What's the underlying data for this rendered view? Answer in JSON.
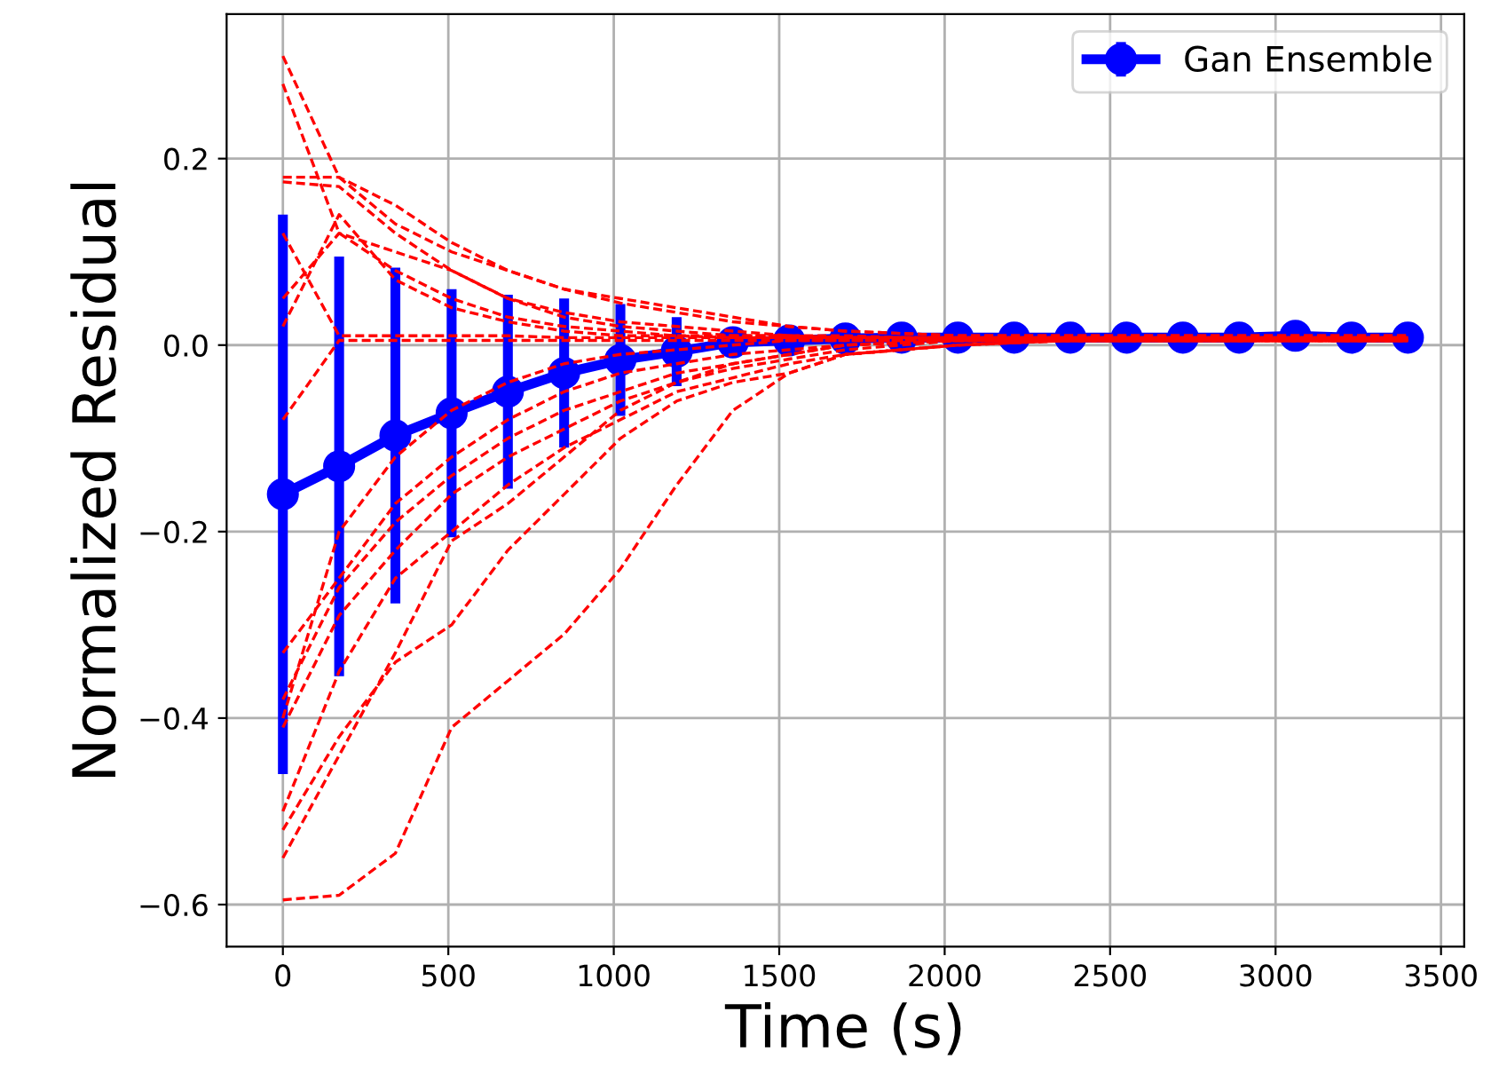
{
  "chart_data": {
    "type": "line",
    "xlabel": "Time (s)",
    "ylabel": "Normalized Residual",
    "xlim": [
      -170,
      3570
    ],
    "xticks": [
      0,
      500,
      1000,
      1500,
      2000,
      2500,
      3000,
      3500
    ],
    "ylim": [
      -0.645,
      0.355
    ],
    "yticks": [
      {
        "value": -0.6,
        "label": "−0.6"
      },
      {
        "value": -0.4,
        "label": "−0.4"
      },
      {
        "value": -0.2,
        "label": "−0.2"
      },
      {
        "value": 0.0,
        "label": "0.0"
      },
      {
        "value": 0.2,
        "label": "0.2"
      }
    ],
    "grid": true,
    "legend": "top right",
    "series": [
      {
        "color": "#ff0000",
        "line_style": "dashed",
        "marker": "none",
        "x": [
          0,
          170,
          340,
          510,
          680,
          850,
          1020,
          1190,
          1360,
          1530,
          1700,
          2040,
          2380,
          2720,
          3060,
          3400
        ],
        "values": [
          0.31,
          0.18,
          0.13,
          0.1,
          0.08,
          0.06,
          0.045,
          0.035,
          0.025,
          0.02,
          0.015,
          0.01,
          0.01,
          0.01,
          0.01,
          0.01
        ]
      },
      {
        "color": "#ff0000",
        "line_style": "dashed",
        "marker": "none",
        "x": [
          0,
          170,
          340,
          510,
          680,
          850,
          1020,
          1190,
          1360,
          1530,
          1700,
          2040,
          2380,
          2720,
          3060,
          3400
        ],
        "values": [
          0.18,
          0.18,
          0.15,
          0.11,
          0.08,
          0.06,
          0.05,
          0.04,
          0.03,
          0.02,
          0.015,
          0.01,
          0.01,
          0.01,
          0.01,
          0.01
        ]
      },
      {
        "color": "#ff0000",
        "line_style": "dashed",
        "marker": "none",
        "x": [
          0,
          170,
          340,
          510,
          680,
          850,
          1020,
          1190,
          1360,
          1530,
          1700,
          2040,
          2380,
          2720,
          3060,
          3400
        ],
        "values": [
          0.175,
          0.17,
          0.12,
          0.08,
          0.05,
          0.035,
          0.025,
          0.02,
          0.015,
          0.01,
          0.01,
          0.006,
          0.006,
          0.006,
          0.006,
          0.006
        ]
      },
      {
        "color": "#ff0000",
        "line_style": "dashed",
        "marker": "none",
        "x": [
          0,
          170,
          340,
          510,
          680,
          850,
          1020,
          1190,
          1360,
          1530,
          1700,
          2040,
          2380,
          2720,
          3060,
          3400
        ],
        "values": [
          0.28,
          0.12,
          0.08,
          0.05,
          0.03,
          0.02,
          0.015,
          0.01,
          0.01,
          0.01,
          0.008,
          0.008,
          0.008,
          0.008,
          0.008,
          0.008
        ]
      },
      {
        "color": "#ff0000",
        "line_style": "dashed",
        "marker": "none",
        "x": [
          0,
          170,
          340,
          510,
          680,
          850,
          1020,
          1190,
          1360,
          1530,
          1700,
          2040,
          2380,
          2720,
          3060,
          3400
        ],
        "values": [
          0.05,
          0.12,
          0.1,
          0.08,
          0.05,
          0.03,
          0.02,
          0.015,
          0.01,
          0.01,
          0.008,
          0.008,
          0.008,
          0.008,
          0.008,
          0.008
        ]
      },
      {
        "color": "#ff0000",
        "line_style": "dashed",
        "marker": "none",
        "x": [
          0,
          170,
          340,
          510,
          680,
          850,
          1020,
          1190,
          1360,
          1530,
          1700,
          2040,
          2380,
          2720,
          3060,
          3400
        ],
        "values": [
          0.02,
          0.14,
          0.07,
          0.04,
          0.025,
          0.015,
          0.01,
          0.01,
          0.008,
          0.008,
          0.008,
          0.008,
          0.008,
          0.008,
          0.008,
          0.008
        ]
      },
      {
        "color": "#ff0000",
        "line_style": "dashed",
        "marker": "none",
        "x": [
          0,
          170,
          340,
          510,
          680,
          850,
          1020,
          1190,
          1360,
          1530,
          1700,
          2040,
          2380,
          2720,
          3060,
          3400
        ],
        "values": [
          0.12,
          0.01,
          0.01,
          0.01,
          0.01,
          0.008,
          0.008,
          0.008,
          0.008,
          0.008,
          0.008,
          0.008,
          0.008,
          0.008,
          0.008,
          0.008
        ]
      },
      {
        "color": "#ff0000",
        "line_style": "dashed",
        "marker": "none",
        "x": [
          0,
          170,
          340,
          510,
          680,
          850,
          1020,
          1190,
          1360,
          1530,
          1700,
          2040,
          2380,
          2720,
          3060,
          3400
        ],
        "values": [
          -0.08,
          0.005,
          0.005,
          0.005,
          0.005,
          0.005,
          0.005,
          0.005,
          0.005,
          0.005,
          0.005,
          0.005,
          0.005,
          0.005,
          0.005,
          0.005
        ]
      },
      {
        "color": "#ff0000",
        "line_style": "dashed",
        "marker": "none",
        "x": [
          0,
          170,
          340,
          510,
          680,
          850,
          1020,
          1190,
          1360,
          1530,
          1700,
          2040,
          2380,
          2720,
          3060,
          3400
        ],
        "values": [
          -0.33,
          -0.25,
          -0.17,
          -0.12,
          -0.08,
          -0.05,
          -0.03,
          -0.02,
          -0.01,
          -0.005,
          0.0,
          0.005,
          0.005,
          0.005,
          0.005,
          0.005
        ]
      },
      {
        "color": "#ff0000",
        "line_style": "dashed",
        "marker": "none",
        "x": [
          0,
          170,
          340,
          510,
          680,
          850,
          1020,
          1190,
          1360,
          1530,
          1700,
          2040,
          2380,
          2720,
          3060,
          3400
        ],
        "values": [
          -0.38,
          -0.26,
          -0.19,
          -0.14,
          -0.1,
          -0.07,
          -0.05,
          -0.03,
          -0.02,
          -0.01,
          0.0,
          0.005,
          0.005,
          0.005,
          0.005,
          0.005
        ]
      },
      {
        "color": "#ff0000",
        "line_style": "dashed",
        "marker": "none",
        "x": [
          0,
          170,
          340,
          510,
          680,
          850,
          1020,
          1190,
          1360,
          1530,
          1700,
          2040,
          2380,
          2720,
          3060,
          3400
        ],
        "values": [
          -0.41,
          -0.29,
          -0.22,
          -0.16,
          -0.12,
          -0.09,
          -0.06,
          -0.04,
          -0.025,
          -0.015,
          -0.005,
          0.005,
          0.005,
          0.005,
          0.005,
          0.005
        ]
      },
      {
        "color": "#ff0000",
        "line_style": "dashed",
        "marker": "none",
        "x": [
          0,
          170,
          340,
          510,
          680,
          850,
          1020,
          1190,
          1360,
          1530,
          1700,
          2040,
          2380,
          2720,
          3060,
          3400
        ],
        "values": [
          -0.5,
          -0.35,
          -0.25,
          -0.2,
          -0.15,
          -0.11,
          -0.08,
          -0.05,
          -0.035,
          -0.02,
          -0.01,
          0.0,
          0.005,
          0.005,
          0.005,
          0.005
        ]
      },
      {
        "color": "#ff0000",
        "line_style": "dashed",
        "marker": "none",
        "x": [
          0,
          170,
          340,
          510,
          680,
          850,
          1020,
          1190,
          1360,
          1530,
          1700,
          2040,
          2380,
          2720,
          3060,
          3400
        ],
        "values": [
          -0.52,
          -0.42,
          -0.34,
          -0.3,
          -0.22,
          -0.16,
          -0.1,
          -0.06,
          -0.04,
          -0.03,
          -0.01,
          0.0,
          0.005,
          0.005,
          0.005,
          0.005
        ]
      },
      {
        "color": "#ff0000",
        "line_style": "dashed",
        "marker": "none",
        "x": [
          0,
          170,
          340,
          510,
          680,
          850,
          1020,
          1190,
          1360,
          1530,
          1700,
          2040,
          2380,
          2720,
          3060,
          3400
        ],
        "values": [
          -0.55,
          -0.44,
          -0.33,
          -0.21,
          -0.17,
          -0.12,
          -0.07,
          -0.04,
          -0.02,
          -0.01,
          0.0,
          0.005,
          0.005,
          0.005,
          0.005,
          0.005
        ]
      },
      {
        "color": "#ff0000",
        "line_style": "dashed",
        "marker": "none",
        "x": [
          0,
          170,
          340,
          510,
          680,
          850,
          1020,
          1190,
          1360,
          1530,
          1700,
          2040,
          2380,
          2720,
          3060,
          3400
        ],
        "values": [
          -0.595,
          -0.59,
          -0.545,
          -0.41,
          -0.36,
          -0.31,
          -0.24,
          -0.15,
          -0.07,
          -0.03,
          -0.01,
          0.0,
          0.005,
          0.005,
          0.005,
          0.005
        ]
      },
      {
        "color": "#ff0000",
        "line_style": "dashed",
        "marker": "none",
        "x": [
          0,
          170,
          340,
          510,
          680,
          850,
          1020,
          1190,
          1360,
          1530,
          1700,
          2040,
          2380,
          2720,
          3060,
          3400
        ],
        "values": [
          -0.4,
          -0.2,
          -0.12,
          -0.07,
          -0.04,
          -0.02,
          -0.01,
          -0.005,
          0.0,
          0.005,
          0.005,
          0.005,
          0.005,
          0.005,
          0.005,
          0.005
        ]
      },
      {
        "name": "Gan Ensemble",
        "color": "#0000ff",
        "line_style": "solid",
        "marker": "circle",
        "x": [
          0,
          170,
          340,
          510,
          680,
          850,
          1020,
          1190,
          1360,
          1530,
          1700,
          1870,
          2040,
          2210,
          2380,
          2550,
          2720,
          2890,
          3060,
          3230,
          3400
        ],
        "values": [
          -0.16,
          -0.13,
          -0.097,
          -0.073,
          -0.05,
          -0.03,
          -0.016,
          -0.007,
          0.003,
          0.005,
          0.007,
          0.008,
          0.008,
          0.008,
          0.008,
          0.008,
          0.008,
          0.008,
          0.01,
          0.008,
          0.008
        ],
        "errors": [
          0.3,
          0.225,
          0.18,
          0.133,
          0.104,
          0.08,
          0.06,
          0.037,
          0.005,
          0.004,
          0.003,
          0.003,
          0.003,
          0.003,
          0.003,
          0.003,
          0.003,
          0.003,
          0.003,
          0.003,
          0.003
        ]
      }
    ]
  }
}
